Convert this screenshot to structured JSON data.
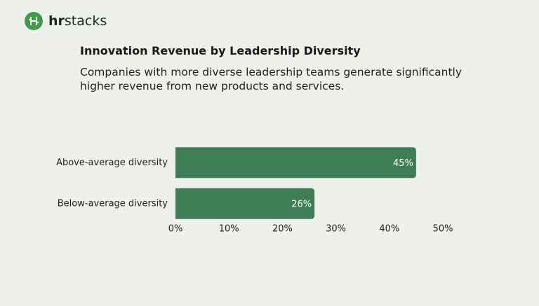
{
  "brand": [
    "hr",
    "stacks"
  ],
  "chart_data": {
    "type": "bar",
    "orientation": "horizontal",
    "title": "Innovation Revenue by Leadership Diversity",
    "subtitle": "Companies with more diverse leadership teams generate significantly higher revenue from new products and services.",
    "categories": [
      "Above-average diversity",
      "Below-average diversity"
    ],
    "values": [
      45,
      26
    ],
    "value_labels": [
      "45%",
      "26%"
    ],
    "color": "#3f7d55",
    "xlim": [
      0,
      50
    ],
    "xticks": [
      {
        "value": 0,
        "label": "0%"
      },
      {
        "value": 10,
        "label": "10%"
      },
      {
        "value": 20,
        "label": "20%"
      },
      {
        "value": 30,
        "label": "30%"
      },
      {
        "value": 40,
        "label": "40%"
      },
      {
        "value": 50,
        "label": "50%"
      }
    ]
  }
}
